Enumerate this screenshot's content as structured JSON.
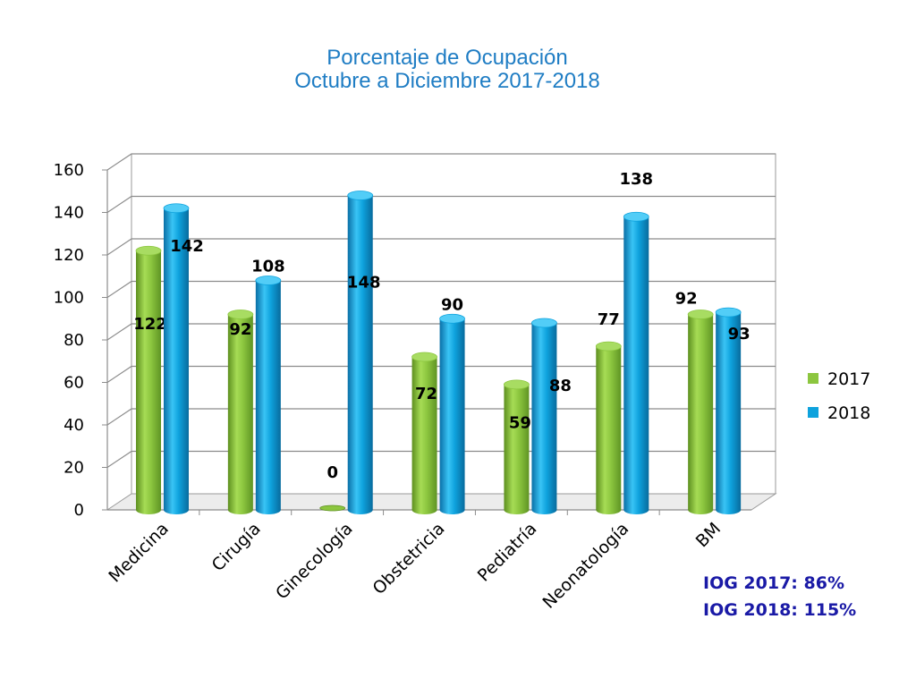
{
  "title_line1": "Porcentaje de Ocupación",
  "title_line2": "Octubre a Diciembre 2017-2018",
  "notes": [
    "IOG 2017: 86%",
    "IOG 2018: 115%"
  ],
  "colors": {
    "series_2017": "#8cc63f",
    "series_2018": "#0ea2dd",
    "title": "#1f7dc4",
    "notes": "#1a1aa6"
  },
  "chart_data": {
    "type": "bar",
    "categories": [
      "Medicina",
      "Cirugía",
      "Ginecología",
      "Obstetricia",
      "Pediatría",
      "Neonatología",
      "BM"
    ],
    "series": [
      {
        "name": "2017",
        "values": [
          122,
          92,
          0,
          72,
          59,
          77,
          92
        ]
      },
      {
        "name": "2018",
        "values": [
          142,
          108,
          148,
          90,
          88,
          138,
          93
        ]
      }
    ],
    "ylim": [
      0,
      160
    ],
    "yticks": [
      0,
      20,
      40,
      60,
      80,
      100,
      120,
      140,
      160
    ],
    "grid": true,
    "legend": "right",
    "style": "3d"
  }
}
